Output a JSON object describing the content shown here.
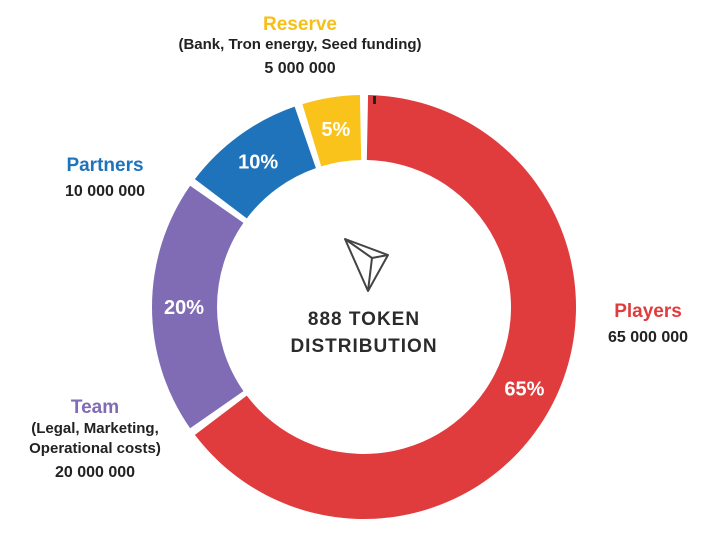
{
  "chart_data": {
    "type": "pie",
    "donut": true,
    "center_title": [
      "888 TOKEN",
      "DISTRIBUTION"
    ],
    "slices": [
      {
        "name": "Players",
        "percent_label": "65%",
        "value": 65,
        "description": "",
        "amount": "65 000 000",
        "color": "#e03c3e"
      },
      {
        "name": "Team",
        "percent_label": "20%",
        "value": 20,
        "description": "(Legal, Marketing, Operational costs)",
        "description_lines": [
          "(Legal, Marketing,",
          "Operational costs)"
        ],
        "amount": "20 000 000",
        "color": "#806cb4"
      },
      {
        "name": "Partners",
        "percent_label": "10%",
        "value": 10,
        "description": "",
        "amount": "10 000 000",
        "color": "#1f73ba"
      },
      {
        "name": "Reserve",
        "percent_label": "5%",
        "value": 5,
        "description": "(Bank, Tron energy, Seed funding)",
        "amount": "5 000 000",
        "color": "#f9c31b"
      }
    ]
  },
  "center_icon": "tron-logo-icon"
}
